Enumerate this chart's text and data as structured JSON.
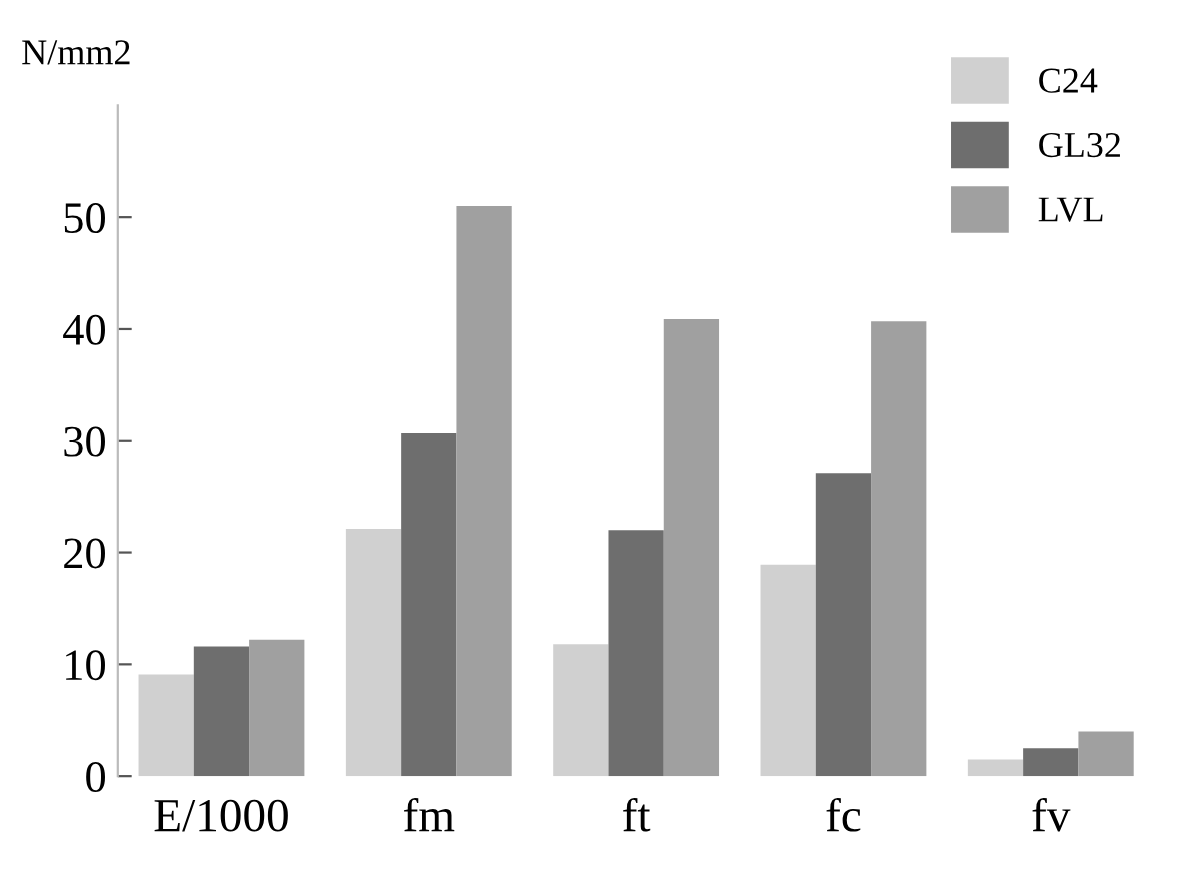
{
  "chart_data": {
    "type": "bar",
    "ylabel": "N/mm2",
    "categories": [
      "E/1000",
      "fm",
      "ft",
      "fc",
      "fv"
    ],
    "series": [
      {
        "name": "C24",
        "color": "#d0d0d0",
        "values": [
          9.1,
          22.1,
          11.8,
          18.9,
          1.5
        ]
      },
      {
        "name": "GL32",
        "color": "#6e6e6e",
        "values": [
          11.6,
          30.7,
          22,
          27.1,
          2.5
        ]
      },
      {
        "name": "LVL",
        "color": "#a0a0a0",
        "values": [
          12.2,
          51,
          40.9,
          40.7,
          4
        ]
      }
    ],
    "ylim": [
      0,
      60
    ],
    "yticks": [
      0,
      10,
      20,
      30,
      40,
      50
    ],
    "grid": false,
    "legend": "top right"
  }
}
